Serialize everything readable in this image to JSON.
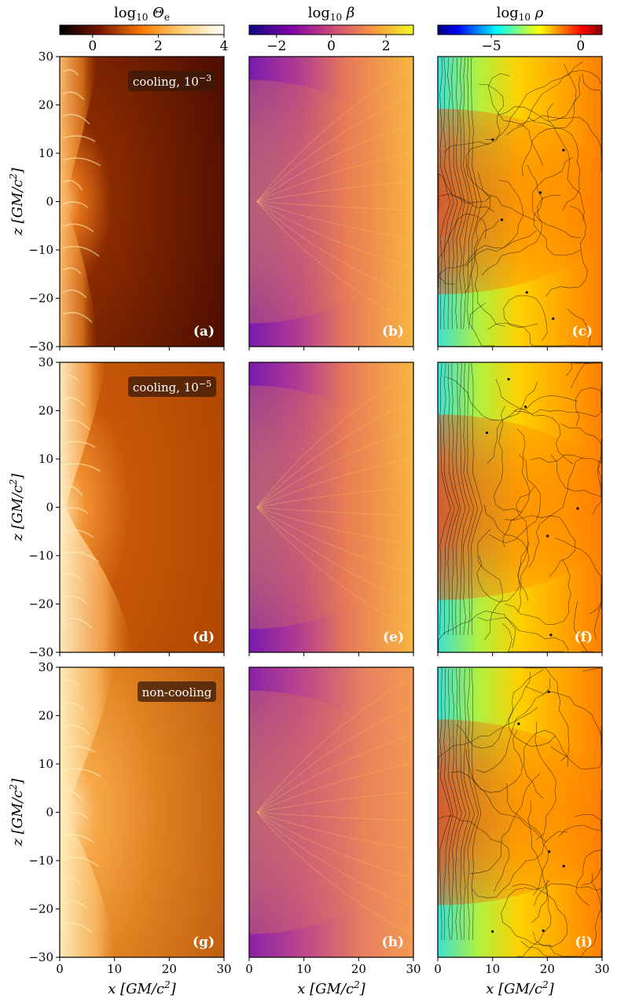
{
  "chart_data": {
    "type": "heatmap",
    "colorbars": [
      {
        "label_main": "log",
        "label_sub": "10",
        "label_sym": "Θ",
        "label_symsub": "e",
        "ticks": [
          "0",
          "2",
          "4"
        ],
        "tick_values": [
          0,
          2,
          4
        ],
        "range": [
          -1,
          4
        ],
        "colormap": "afmhot"
      },
      {
        "label_main": "log",
        "label_sub": "10",
        "label_sym": "β",
        "label_symsub": "",
        "ticks": [
          "−2",
          "0",
          "2"
        ],
        "tick_values": [
          -2,
          0,
          2
        ],
        "range": [
          -3,
          3
        ],
        "colormap": "plasma"
      },
      {
        "label_main": "log",
        "label_sub": "10",
        "label_sym": "ρ",
        "label_symsub": "",
        "ticks": [
          "−5",
          "0"
        ],
        "tick_values": [
          -5,
          0
        ],
        "range": [
          -8,
          1.2
        ],
        "colormap": "jet"
      }
    ],
    "x_axis": {
      "ticks": [
        "0",
        "10",
        "20",
        "30"
      ],
      "tick_values": [
        0,
        10,
        20,
        30
      ],
      "range": [
        0,
        30
      ],
      "label_main": "x",
      "label_unit": "[GM/c",
      "label_exp": "2",
      "label_close": "]"
    },
    "y_axis": {
      "ticks": [
        "30",
        "20",
        "10",
        "0",
        "−10",
        "−20",
        "−30"
      ],
      "tick_values": [
        30,
        20,
        10,
        0,
        -10,
        -20,
        -30
      ],
      "range": [
        -30,
        30
      ],
      "label_main": "z",
      "label_unit": "[GM/c",
      "label_exp": "2",
      "label_close": "]"
    },
    "rows": [
      {
        "tag_text": "cooling, 10",
        "tag_exp": "−3",
        "labels": [
          "(a)",
          "(b)",
          "(c)"
        ]
      },
      {
        "tag_text": "cooling, 10",
        "tag_exp": "−5",
        "labels": [
          "(d)",
          "(e)",
          "(f)"
        ]
      },
      {
        "tag_text": "non-cooling",
        "tag_exp": "",
        "labels": [
          "(g)",
          "(h)",
          "(i)"
        ]
      }
    ]
  }
}
